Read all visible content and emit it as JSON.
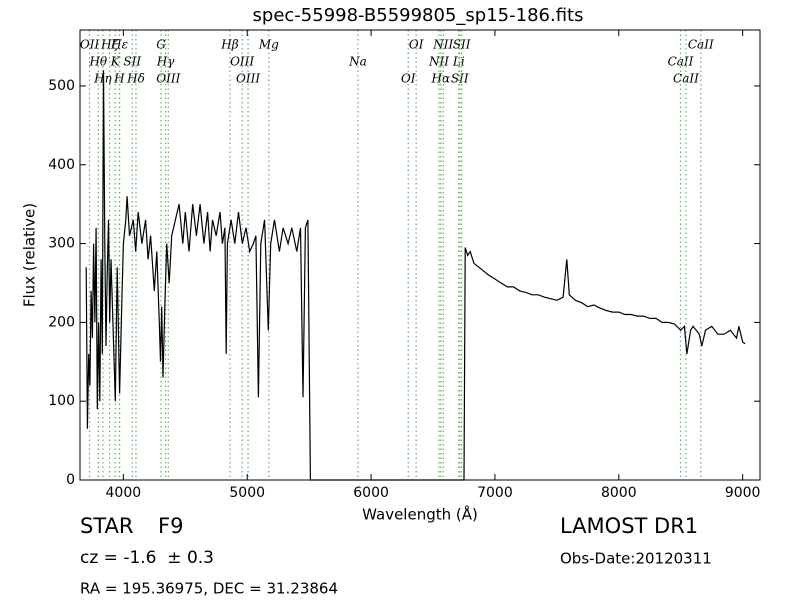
{
  "chart_data": {
    "type": "line",
    "title": "spec-55998-B5599805_sp15-186.fits",
    "x_label": "Wavelength (Å)",
    "y_label": "Flux (relative)",
    "xlim": [
      3650,
      9140
    ],
    "ylim": [
      0,
      571
    ],
    "xticks": [
      4000,
      5000,
      6000,
      7000,
      8000,
      9000
    ],
    "yticks": [
      0,
      100,
      200,
      300,
      400,
      500
    ],
    "x": [
      3700,
      3710,
      3720,
      3730,
      3740,
      3750,
      3760,
      3770,
      3780,
      3790,
      3800,
      3810,
      3820,
      3830,
      3840,
      3850,
      3860,
      3870,
      3880,
      3890,
      3900,
      3920,
      3935,
      3950,
      3970,
      3990,
      4000,
      4020,
      4030,
      4050,
      4080,
      4100,
      4120,
      4150,
      4180,
      4200,
      4220,
      4250,
      4270,
      4290,
      4300,
      4310,
      4320,
      4335,
      4350,
      4370,
      4390,
      4420,
      4450,
      4480,
      4500,
      4530,
      4560,
      4590,
      4620,
      4650,
      4680,
      4700,
      4720,
      4750,
      4780,
      4800,
      4820,
      4830,
      4840,
      4870,
      4900,
      4930,
      4960,
      4990,
      5020,
      5050,
      5070,
      5090,
      5110,
      5140,
      5170,
      5190,
      5220,
      5260,
      5290,
      5330,
      5360,
      5400,
      5430,
      5450,
      5470,
      5490,
      5510,
      6750,
      6760,
      6780,
      6800,
      6830,
      6870,
      6910,
      6950,
      7000,
      7050,
      7100,
      7150,
      7200,
      7250,
      7300,
      7350,
      7400,
      7450,
      7500,
      7550,
      7580,
      7600,
      7650,
      7700,
      7750,
      7800,
      7850,
      7900,
      7950,
      8000,
      8050,
      8100,
      8150,
      8200,
      8250,
      8300,
      8350,
      8400,
      8450,
      8500,
      8530,
      8550,
      8580,
      8600,
      8650,
      8670,
      8700,
      8750,
      8800,
      8850,
      8900,
      8950,
      8970,
      9000,
      9020
    ],
    "series": [
      {
        "name": "Flux",
        "color": "#000000",
        "values": [
          270,
          65,
          160,
          120,
          240,
          180,
          300,
          200,
          320,
          90,
          200,
          100,
          280,
          160,
          520,
          300,
          170,
          260,
          330,
          200,
          280,
          180,
          100,
          270,
          110,
          240,
          300,
          330,
          360,
          310,
          330,
          290,
          340,
          300,
          330,
          280,
          310,
          240,
          290,
          200,
          150,
          220,
          130,
          220,
          300,
          250,
          310,
          330,
          350,
          300,
          340,
          290,
          350,
          310,
          350,
          300,
          340,
          290,
          330,
          310,
          340,
          300,
          320,
          160,
          300,
          330,
          300,
          340,
          300,
          320,
          290,
          300,
          310,
          105,
          300,
          330,
          190,
          300,
          330,
          290,
          320,
          300,
          320,
          290,
          320,
          105,
          320,
          330,
          0,
          0,
          295,
          285,
          290,
          275,
          270,
          265,
          260,
          255,
          250,
          245,
          245,
          240,
          238,
          235,
          235,
          232,
          230,
          228,
          232,
          280,
          235,
          228,
          225,
          220,
          222,
          218,
          215,
          213,
          213,
          210,
          210,
          208,
          208,
          205,
          205,
          200,
          200,
          198,
          190,
          195,
          160,
          190,
          195,
          185,
          170,
          190,
          195,
          185,
          185,
          190,
          180,
          195,
          175,
          173
        ]
      }
    ],
    "line_markers": {
      "color": "#5cb85c",
      "items": [
        {
          "label": "OII",
          "x": 3727
        },
        {
          "label": "Hθ",
          "x": 3798
        },
        {
          "label": "Hη",
          "x": 3835
        },
        {
          "label": "Hζ",
          "x": 3889
        },
        {
          "label": "K",
          "x": 3934
        },
        {
          "label": "H",
          "x": 3968
        },
        {
          "label": "Hε",
          "x": 3970
        },
        {
          "label": "SII",
          "x": 4072
        },
        {
          "label": "Hδ",
          "x": 4102
        },
        {
          "label": "G",
          "x": 4304
        },
        {
          "label": "Hγ",
          "x": 4341
        },
        {
          "label": "OIII",
          "x": 4363
        },
        {
          "label": "Hβ",
          "x": 4861
        },
        {
          "label": "OIII",
          "x": 4959
        },
        {
          "label": "OIII",
          "x": 5007
        },
        {
          "label": "Mg",
          "x": 5175
        },
        {
          "label": "Na",
          "x": 5894
        },
        {
          "label": "OI",
          "x": 6300
        },
        {
          "label": "OI",
          "x": 6364
        },
        {
          "label": "NII",
          "x": 6548
        },
        {
          "label": "Hα",
          "x": 6563
        },
        {
          "label": "NII",
          "x": 6583
        },
        {
          "label": "Li",
          "x": 6708
        },
        {
          "label": "SII",
          "x": 6716
        },
        {
          "label": "SII",
          "x": 6731
        },
        {
          "label": "CaII",
          "x": 8498
        },
        {
          "label": "CaII",
          "x": 8542
        },
        {
          "label": "CaII",
          "x": 8662
        }
      ]
    },
    "class_label": "STAR",
    "subclass": "F9",
    "redshift": "cz = -1.6  ± 0.3",
    "coordinates": "RA = 195.36975, DEC = 31.23864",
    "survey": "LAMOST DR1",
    "obs_date": "Obs-Date:20120311"
  }
}
